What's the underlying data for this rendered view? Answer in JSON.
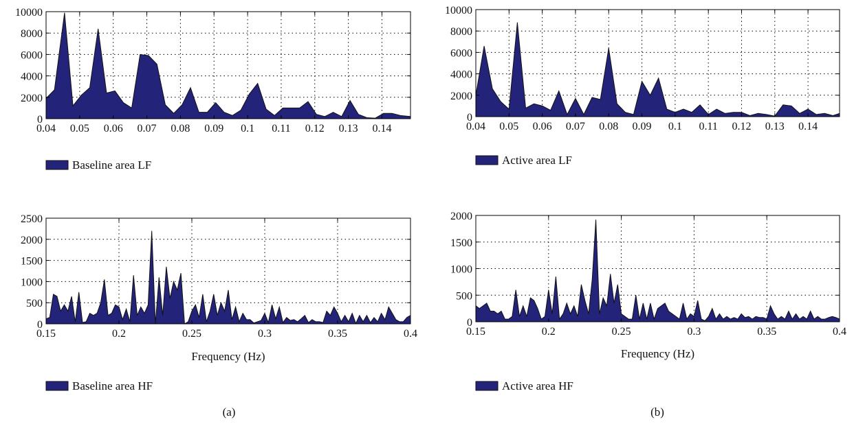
{
  "colors": {
    "series_fill": "#23237a",
    "series_stroke": "#111111",
    "background": "#ffffff"
  },
  "panel_labels": [
    "(a)",
    "(b)"
  ],
  "chart_data": [
    {
      "id": "baseline-lf",
      "type": "area",
      "title": "",
      "xlabel": "",
      "ylabel": "",
      "xlim": [
        0.04,
        0.1485
      ],
      "ylim": [
        0,
        10000
      ],
      "x_ticks": [
        0.04,
        0.05,
        0.06,
        0.07,
        0.08,
        0.09,
        0.1,
        0.11,
        0.12,
        0.13,
        0.14
      ],
      "x_tick_labels": [
        "0.04",
        "0.05",
        "0.06",
        "0.07",
        "0.08",
        "0.09",
        "0.1",
        "0.11",
        "0.12",
        "0.13",
        "0.14"
      ],
      "y_ticks": [
        0,
        2000,
        4000,
        6000,
        8000,
        10000
      ],
      "y_tick_labels": [
        "0",
        "2000",
        "4000",
        "6000",
        "8000",
        "10000"
      ],
      "grid": true,
      "legend": {
        "label": "Baseline area LF",
        "placement": "bottom-left, below plot"
      },
      "series": [
        {
          "name": "Baseline area LF",
          "x": [
            0.04,
            0.0425,
            0.0455,
            0.048,
            0.0505,
            0.053,
            0.0555,
            0.058,
            0.0605,
            0.063,
            0.0655,
            0.068,
            0.0705,
            0.073,
            0.0755,
            0.078,
            0.0805,
            0.083,
            0.0855,
            0.088,
            0.0905,
            0.093,
            0.0955,
            0.098,
            0.1005,
            0.103,
            0.1055,
            0.108,
            0.1105,
            0.113,
            0.1155,
            0.118,
            0.1205,
            0.123,
            0.1255,
            0.128,
            0.1305,
            0.133,
            0.1355,
            0.138,
            0.1405,
            0.143,
            0.1455,
            0.1485
          ],
          "y": [
            1900,
            2700,
            9900,
            1200,
            2200,
            2900,
            8400,
            2400,
            2600,
            1500,
            1000,
            6000,
            5900,
            5100,
            1300,
            500,
            1300,
            2900,
            600,
            600,
            1500,
            600,
            300,
            800,
            2300,
            3300,
            900,
            300,
            1000,
            1000,
            1000,
            1600,
            400,
            200,
            600,
            200,
            1700,
            400,
            100,
            50,
            500,
            500,
            300,
            200
          ]
        }
      ]
    },
    {
      "id": "active-lf",
      "type": "area",
      "title": "",
      "xlabel": "",
      "ylabel": "",
      "xlim": [
        0.04,
        0.1495
      ],
      "ylim": [
        0,
        10000
      ],
      "x_ticks": [
        0.04,
        0.05,
        0.06,
        0.07,
        0.08,
        0.09,
        0.1,
        0.11,
        0.12,
        0.13,
        0.14
      ],
      "x_tick_labels": [
        "0.04",
        "0.05",
        "0.06",
        "0.07",
        "0.08",
        "0.09",
        "0.1",
        "0.11",
        "0.12",
        "0.13",
        "0.14"
      ],
      "y_ticks": [
        0,
        2000,
        4000,
        6000,
        8000,
        10000
      ],
      "y_tick_labels": [
        "0",
        "2000",
        "4000",
        "6000",
        "8000",
        "10000"
      ],
      "grid": true,
      "legend": {
        "label": "Active area LF",
        "placement": "bottom-left, below plot"
      },
      "series": [
        {
          "name": "Active area LF",
          "x": [
            0.04,
            0.0425,
            0.045,
            0.0475,
            0.05,
            0.0525,
            0.055,
            0.0575,
            0.06,
            0.0625,
            0.065,
            0.0675,
            0.07,
            0.0725,
            0.075,
            0.0775,
            0.08,
            0.0825,
            0.085,
            0.0875,
            0.09,
            0.0925,
            0.095,
            0.0975,
            0.1,
            0.1025,
            0.105,
            0.1075,
            0.11,
            0.1125,
            0.115,
            0.1175,
            0.12,
            0.1225,
            0.125,
            0.1275,
            0.13,
            0.1325,
            0.135,
            0.1375,
            0.14,
            0.1425,
            0.145,
            0.1475,
            0.1495
          ],
          "y": [
            2000,
            6600,
            2600,
            1400,
            700,
            8800,
            800,
            1200,
            1000,
            600,
            2400,
            200,
            1700,
            200,
            1800,
            1600,
            6400,
            1200,
            400,
            200,
            3300,
            2000,
            3600,
            700,
            400,
            700,
            400,
            1100,
            200,
            700,
            300,
            400,
            400,
            100,
            300,
            200,
            50,
            1100,
            1000,
            300,
            700,
            200,
            300,
            100,
            300
          ]
        }
      ]
    },
    {
      "id": "baseline-hf",
      "type": "area",
      "title": "",
      "xlabel": "Frequency (Hz)",
      "ylabel": "",
      "xlim": [
        0.15,
        0.4
      ],
      "ylim": [
        0,
        2500
      ],
      "x_ticks": [
        0.15,
        0.2,
        0.25,
        0.3,
        0.35,
        0.4
      ],
      "x_tick_labels": [
        "0.15",
        "0.2",
        "0.25",
        "0.3",
        "0.35",
        "0.4"
      ],
      "y_ticks": [
        0,
        500,
        1000,
        1500,
        2000,
        2500
      ],
      "y_tick_labels": [
        "0",
        "500",
        "1000",
        "1500",
        "2000",
        "2500"
      ],
      "grid": true,
      "legend": {
        "label": "Baseline area HF",
        "placement": "bottom-left, below plot"
      },
      "series": [
        {
          "name": "Baseline area HF",
          "x": [
            0.15,
            0.1525,
            0.155,
            0.1575,
            0.16,
            0.1625,
            0.165,
            0.1675,
            0.17,
            0.1725,
            0.175,
            0.1775,
            0.18,
            0.1825,
            0.185,
            0.1875,
            0.19,
            0.1925,
            0.195,
            0.1975,
            0.2,
            0.2025,
            0.205,
            0.2075,
            0.21,
            0.2125,
            0.215,
            0.2175,
            0.22,
            0.2225,
            0.225,
            0.2275,
            0.23,
            0.2325,
            0.235,
            0.2375,
            0.24,
            0.2425,
            0.245,
            0.2475,
            0.25,
            0.2525,
            0.255,
            0.2575,
            0.26,
            0.2625,
            0.265,
            0.2675,
            0.27,
            0.2725,
            0.275,
            0.2775,
            0.28,
            0.2825,
            0.285,
            0.2875,
            0.29,
            0.2925,
            0.295,
            0.2975,
            0.3,
            0.3025,
            0.305,
            0.3075,
            0.31,
            0.3125,
            0.315,
            0.3175,
            0.32,
            0.3225,
            0.325,
            0.3275,
            0.33,
            0.3325,
            0.335,
            0.3375,
            0.34,
            0.3425,
            0.345,
            0.3475,
            0.35,
            0.3525,
            0.355,
            0.3575,
            0.36,
            0.3625,
            0.365,
            0.3675,
            0.37,
            0.3725,
            0.375,
            0.3775,
            0.38,
            0.3825,
            0.385,
            0.3875,
            0.39,
            0.3925,
            0.395,
            0.3975,
            0.4
          ],
          "y": [
            120,
            150,
            700,
            650,
            300,
            450,
            300,
            650,
            50,
            750,
            30,
            50,
            250,
            200,
            250,
            500,
            1050,
            200,
            250,
            450,
            400,
            100,
            350,
            50,
            1150,
            200,
            400,
            250,
            450,
            2200,
            0,
            1100,
            200,
            1350,
            600,
            1000,
            800,
            1200,
            0,
            50,
            300,
            450,
            150,
            700,
            50,
            300,
            700,
            200,
            500,
            300,
            800,
            100,
            400,
            50,
            250,
            100,
            100,
            20,
            50,
            80,
            250,
            30,
            450,
            120,
            400,
            30,
            150,
            80,
            100,
            50,
            120,
            200,
            30,
            100,
            50,
            50,
            30,
            300,
            200,
            400,
            250,
            50,
            200,
            50,
            250,
            10,
            200,
            50,
            200,
            30,
            150,
            50,
            250,
            100,
            400,
            250,
            100,
            50,
            50,
            150,
            200
          ]
        }
      ]
    },
    {
      "id": "active-hf",
      "type": "area",
      "title": "",
      "xlabel": "Frequency (Hz)",
      "ylabel": "",
      "xlim": [
        0.15,
        0.4
      ],
      "ylim": [
        0,
        2000
      ],
      "x_ticks": [
        0.15,
        0.2,
        0.25,
        0.3,
        0.35,
        0.4
      ],
      "x_tick_labels": [
        "0.15",
        "0.2",
        "0.25",
        "0.3",
        "0.35",
        "0.4"
      ],
      "y_ticks": [
        0,
        500,
        1000,
        1500,
        2000
      ],
      "y_tick_labels": [
        "0",
        "500",
        "1000",
        "1500",
        "2000"
      ],
      "grid": true,
      "legend": {
        "label": "Active area HF",
        "placement": "bottom-left, below plot"
      },
      "series": [
        {
          "name": "Active area HF",
          "x": [
            0.15,
            0.1525,
            0.155,
            0.1575,
            0.16,
            0.1625,
            0.165,
            0.1675,
            0.17,
            0.1725,
            0.175,
            0.1775,
            0.18,
            0.1825,
            0.185,
            0.1875,
            0.19,
            0.1925,
            0.195,
            0.1975,
            0.2,
            0.2025,
            0.205,
            0.2075,
            0.21,
            0.2125,
            0.215,
            0.2175,
            0.22,
            0.2225,
            0.225,
            0.2275,
            0.23,
            0.2325,
            0.235,
            0.2375,
            0.24,
            0.2425,
            0.245,
            0.2475,
            0.25,
            0.2525,
            0.255,
            0.2575,
            0.26,
            0.2625,
            0.265,
            0.2675,
            0.27,
            0.2725,
            0.275,
            0.2775,
            0.28,
            0.2825,
            0.285,
            0.2875,
            0.29,
            0.2925,
            0.295,
            0.2975,
            0.3,
            0.3025,
            0.305,
            0.3075,
            0.31,
            0.3125,
            0.315,
            0.3175,
            0.32,
            0.3225,
            0.325,
            0.3275,
            0.33,
            0.3325,
            0.335,
            0.3375,
            0.34,
            0.3425,
            0.345,
            0.3475,
            0.35,
            0.3525,
            0.355,
            0.3575,
            0.36,
            0.3625,
            0.365,
            0.3675,
            0.37,
            0.3725,
            0.375,
            0.3775,
            0.38,
            0.3825,
            0.385,
            0.3875,
            0.39,
            0.3925,
            0.395,
            0.3975,
            0.4
          ],
          "y": [
            300,
            250,
            300,
            350,
            200,
            200,
            150,
            200,
            50,
            50,
            100,
            600,
            100,
            300,
            100,
            450,
            400,
            250,
            50,
            100,
            600,
            150,
            850,
            50,
            150,
            350,
            150,
            300,
            100,
            700,
            400,
            150,
            800,
            1920,
            150,
            450,
            300,
            900,
            350,
            700,
            150,
            100,
            50,
            50,
            500,
            50,
            350,
            50,
            350,
            50,
            250,
            300,
            350,
            200,
            150,
            100,
            50,
            350,
            50,
            150,
            100,
            400,
            50,
            20,
            100,
            250,
            50,
            150,
            50,
            100,
            50,
            80,
            50,
            150,
            80,
            100,
            50,
            100,
            80,
            80,
            50,
            300,
            150,
            50,
            100,
            50,
            200,
            50,
            150,
            50,
            100,
            50,
            200,
            50,
            100,
            50,
            50,
            80,
            100,
            80,
            50
          ]
        }
      ]
    }
  ]
}
